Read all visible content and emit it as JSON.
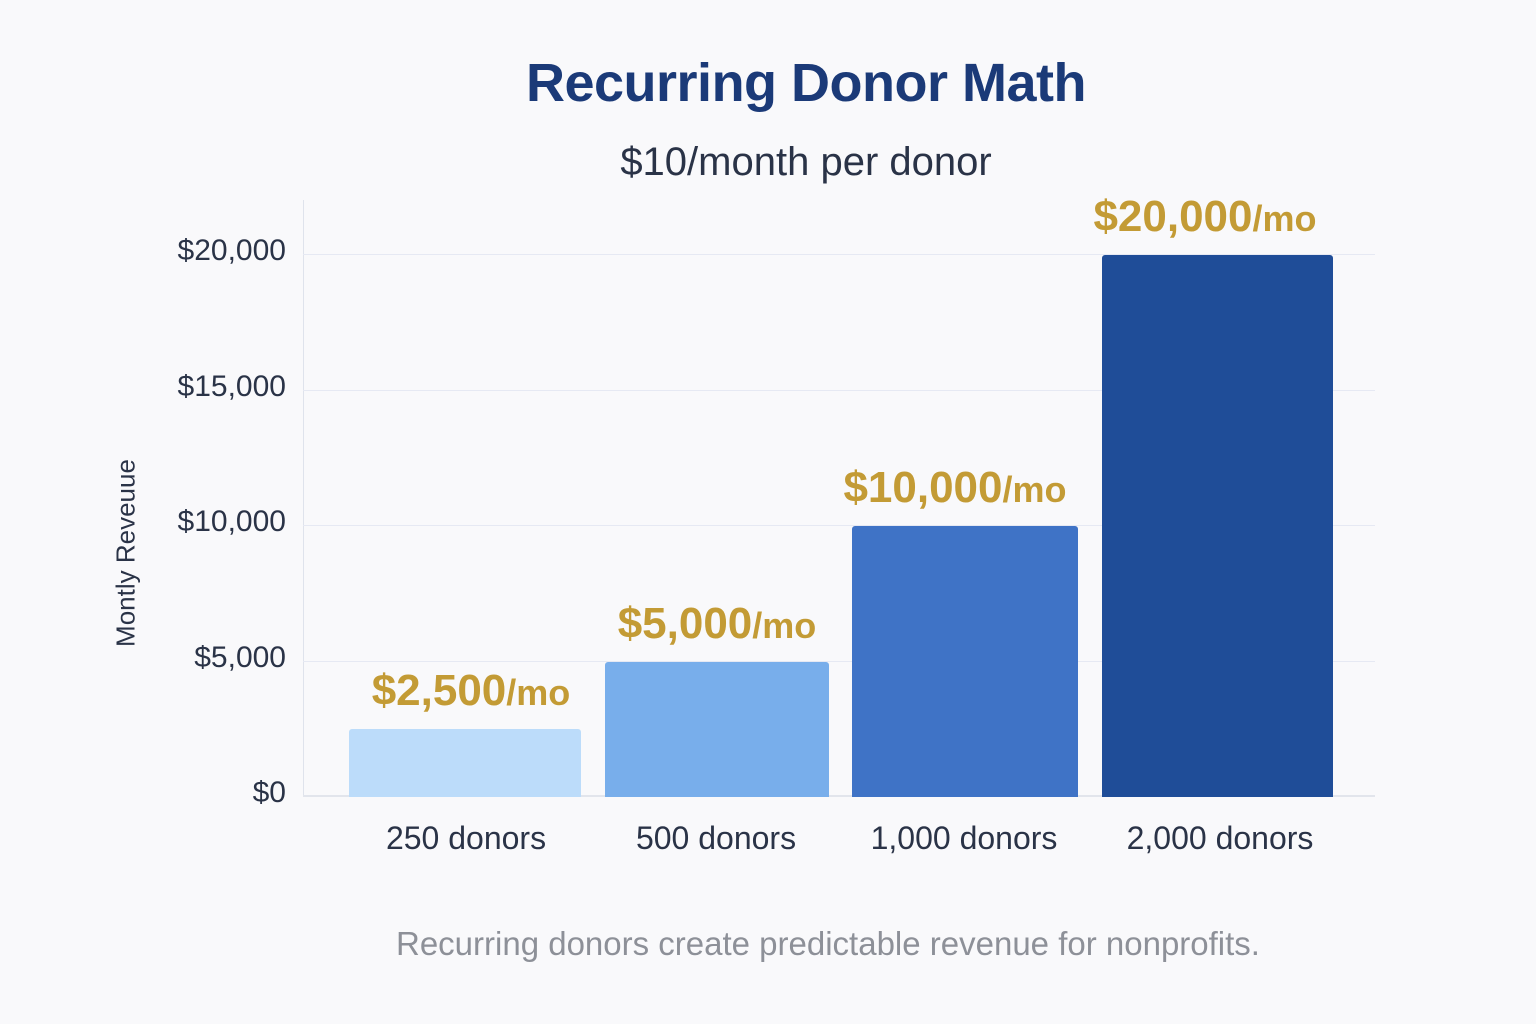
{
  "chart_data": {
    "type": "bar",
    "title": "Recurring Donor Math",
    "subtitle": "$10/month per donor",
    "xlabel": "",
    "ylabel": "Montly Reveuue",
    "categories": [
      "250 donors",
      "500 donors",
      "1,000 donors",
      "2,000 donors"
    ],
    "values": [
      2500,
      5000,
      10000,
      20000
    ],
    "data_labels": [
      "$2,500",
      "$5,000",
      "$10,000",
      "$20,000"
    ],
    "data_label_unit": "/mo",
    "yticks": [
      "$0",
      "$5,000",
      "$10,000",
      "$15,000",
      "$20,000"
    ],
    "ytick_values": [
      0,
      5000,
      10000,
      15000,
      20000
    ],
    "ylim": [
      0,
      22000
    ],
    "grid": true,
    "legend": "none",
    "bar_colors": [
      "#bcdcfa",
      "#78aeeb",
      "#3f73c6",
      "#1f4d98"
    ],
    "label_color": "#c39b35",
    "caption": "Recurring donors create predictable revenue for nonprofits."
  }
}
